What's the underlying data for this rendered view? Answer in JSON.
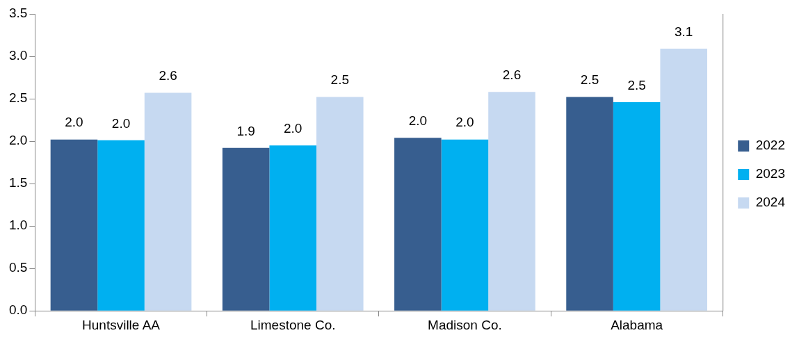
{
  "chart_data": {
    "type": "bar",
    "categories": [
      "Huntsville AA",
      "Limestone Co.",
      "Madison Co.",
      "Alabama"
    ],
    "series": [
      {
        "name": "2022",
        "color": "#375e8f",
        "values": [
          2.02,
          1.92,
          2.04,
          2.52
        ],
        "value_labels": [
          "2.0",
          "1.9",
          "2.0",
          "2.5"
        ]
      },
      {
        "name": "2023",
        "color": "#00b0f0",
        "values": [
          2.01,
          1.95,
          2.02,
          2.46
        ],
        "value_labels": [
          "2.0",
          "2.0",
          "2.0",
          "2.5"
        ]
      },
      {
        "name": "2024",
        "color": "#c6d9f1",
        "values": [
          2.57,
          2.52,
          2.58,
          3.09
        ],
        "value_labels": [
          "2.6",
          "2.5",
          "2.6",
          "3.1"
        ]
      }
    ],
    "ylim": [
      0,
      3.5
    ],
    "yticks": [
      {
        "value": 0,
        "label": "0.0"
      },
      {
        "value": 0.5,
        "label": "0.5"
      },
      {
        "value": 1,
        "label": "1.0"
      },
      {
        "value": 1.5,
        "label": "1.5"
      },
      {
        "value": 2,
        "label": "2.0"
      },
      {
        "value": 2.5,
        "label": "2.5"
      },
      {
        "value": 3,
        "label": "3.0"
      },
      {
        "value": 3.5,
        "label": "3.5"
      }
    ],
    "grid": false,
    "legend": "right"
  }
}
